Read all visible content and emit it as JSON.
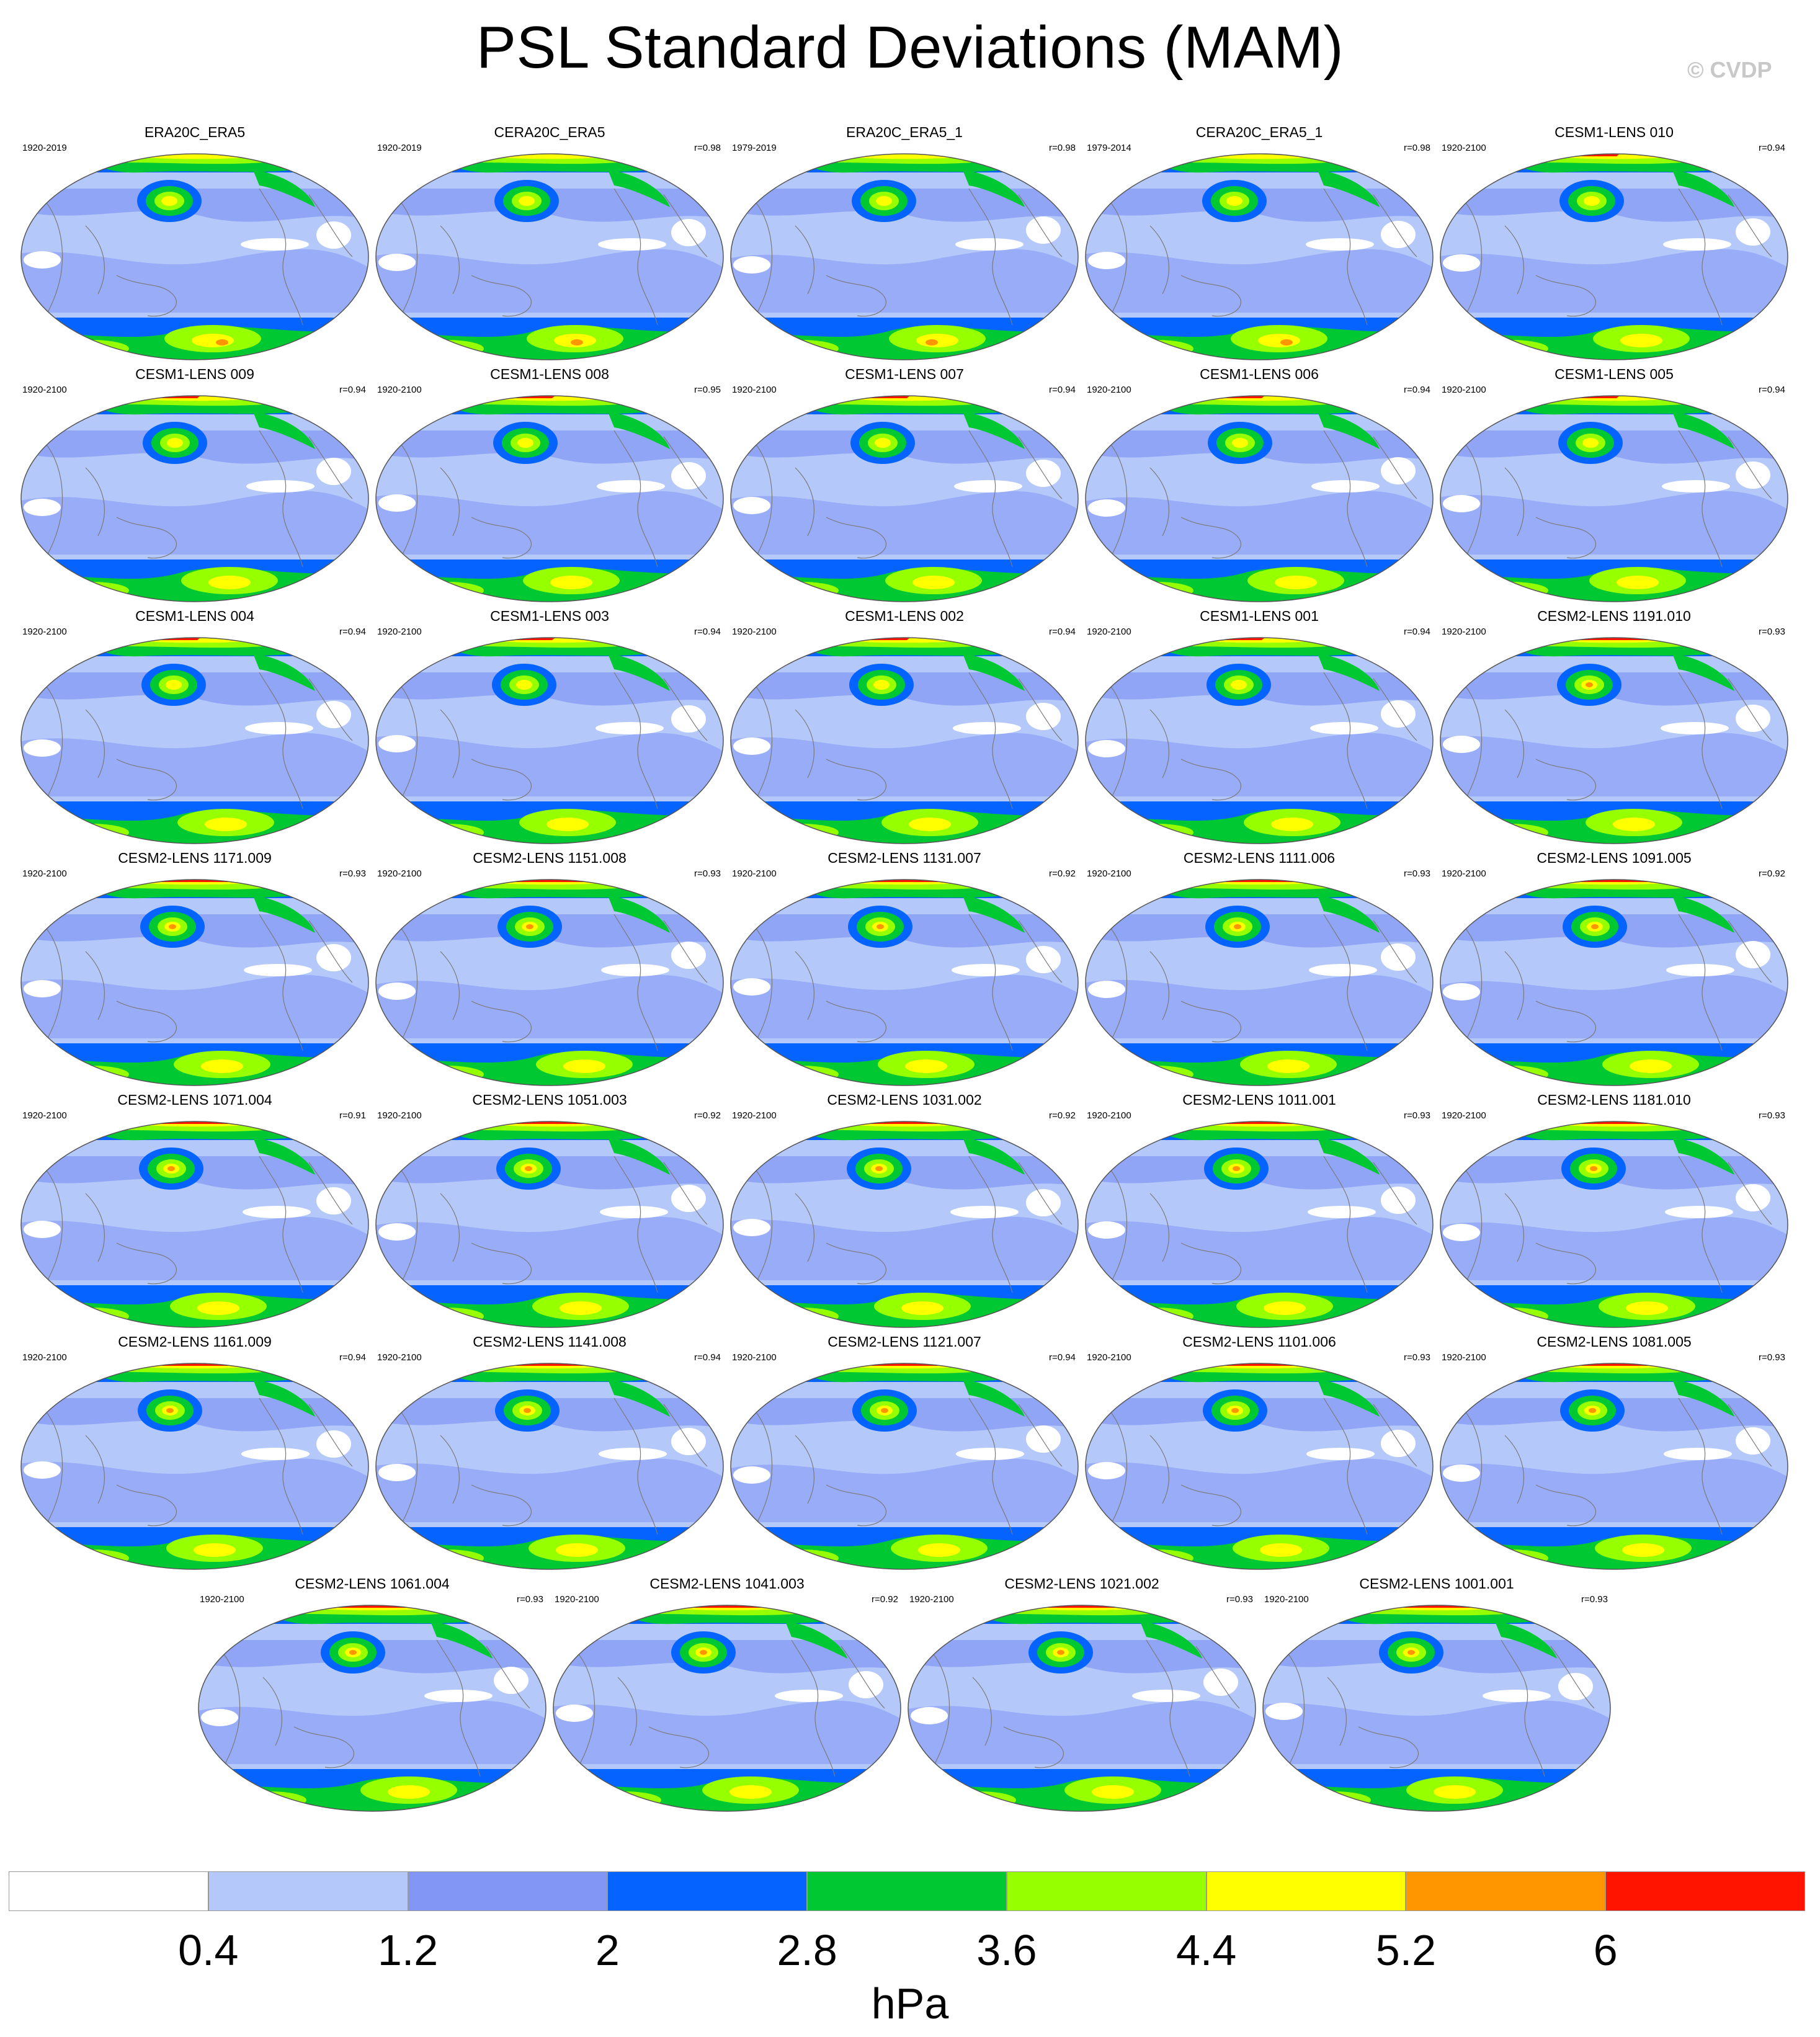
{
  "title": "PSL Standard Deviations (MAM)",
  "copyright": "© CVDP",
  "colors": {
    "levels": [
      "#ffffff",
      "#b4c8fa",
      "#8296f5",
      "#0564ff",
      "#00c832",
      "#96ff00",
      "#ffff00",
      "#ff9600",
      "#ff1400"
    ],
    "land_outline": "#7a7a7a"
  },
  "colorbar": {
    "ticks": [
      "0.4",
      "1.2",
      "2",
      "2.8",
      "3.6",
      "4.4",
      "5.2",
      "6"
    ],
    "units": "hPa"
  },
  "panels": [
    {
      "title": "ERA20C_ERA5",
      "period": "1920-2019",
      "corr": ""
    },
    {
      "title": "CERA20C_ERA5",
      "period": "1920-2019",
      "corr": "r=0.98"
    },
    {
      "title": "ERA20C_ERA5_1",
      "period": "1979-2019",
      "corr": "r=0.98"
    },
    {
      "title": "CERA20C_ERA5_1",
      "period": "1979-2014",
      "corr": "r=0.98"
    },
    {
      "title": "CESM1-LENS 010",
      "period": "1920-2100",
      "corr": "r=0.94"
    },
    {
      "title": "CESM1-LENS 009",
      "period": "1920-2100",
      "corr": "r=0.94"
    },
    {
      "title": "CESM1-LENS 008",
      "period": "1920-2100",
      "corr": "r=0.95"
    },
    {
      "title": "CESM1-LENS 007",
      "period": "1920-2100",
      "corr": "r=0.94"
    },
    {
      "title": "CESM1-LENS 006",
      "period": "1920-2100",
      "corr": "r=0.94"
    },
    {
      "title": "CESM1-LENS 005",
      "period": "1920-2100",
      "corr": "r=0.94"
    },
    {
      "title": "CESM1-LENS 004",
      "period": "1920-2100",
      "corr": "r=0.94"
    },
    {
      "title": "CESM1-LENS 003",
      "period": "1920-2100",
      "corr": "r=0.94"
    },
    {
      "title": "CESM1-LENS 002",
      "period": "1920-2100",
      "corr": "r=0.94"
    },
    {
      "title": "CESM1-LENS 001",
      "period": "1920-2100",
      "corr": "r=0.94"
    },
    {
      "title": "CESM2-LENS 1191.010",
      "period": "1920-2100",
      "corr": "r=0.93"
    },
    {
      "title": "CESM2-LENS 1171.009",
      "period": "1920-2100",
      "corr": "r=0.93"
    },
    {
      "title": "CESM2-LENS 1151.008",
      "period": "1920-2100",
      "corr": "r=0.93"
    },
    {
      "title": "CESM2-LENS 1131.007",
      "period": "1920-2100",
      "corr": "r=0.92"
    },
    {
      "title": "CESM2-LENS 1111.006",
      "period": "1920-2100",
      "corr": "r=0.93"
    },
    {
      "title": "CESM2-LENS 1091.005",
      "period": "1920-2100",
      "corr": "r=0.92"
    },
    {
      "title": "CESM2-LENS 1071.004",
      "period": "1920-2100",
      "corr": "r=0.91"
    },
    {
      "title": "CESM2-LENS 1051.003",
      "period": "1920-2100",
      "corr": "r=0.92"
    },
    {
      "title": "CESM2-LENS 1031.002",
      "period": "1920-2100",
      "corr": "r=0.92"
    },
    {
      "title": "CESM2-LENS 1011.001",
      "period": "1920-2100",
      "corr": "r=0.93"
    },
    {
      "title": "CESM2-LENS 1181.010",
      "period": "1920-2100",
      "corr": "r=0.93"
    },
    {
      "title": "CESM2-LENS 1161.009",
      "period": "1920-2100",
      "corr": "r=0.94"
    },
    {
      "title": "CESM2-LENS 1141.008",
      "period": "1920-2100",
      "corr": "r=0.94"
    },
    {
      "title": "CESM2-LENS 1121.007",
      "period": "1920-2100",
      "corr": "r=0.94"
    },
    {
      "title": "CESM2-LENS 1101.006",
      "period": "1920-2100",
      "corr": "r=0.93"
    },
    {
      "title": "CESM2-LENS 1081.005",
      "period": "1920-2100",
      "corr": "r=0.93"
    },
    {
      "title": "CESM2-LENS 1061.004",
      "period": "1920-2100",
      "corr": "r=0.93"
    },
    {
      "title": "CESM2-LENS 1041.003",
      "period": "1920-2100",
      "corr": "r=0.92"
    },
    {
      "title": "CESM2-LENS 1021.002",
      "period": "1920-2100",
      "corr": "r=0.93"
    },
    {
      "title": "CESM2-LENS 1001.001",
      "period": "1920-2100",
      "corr": "r=0.93"
    }
  ]
}
